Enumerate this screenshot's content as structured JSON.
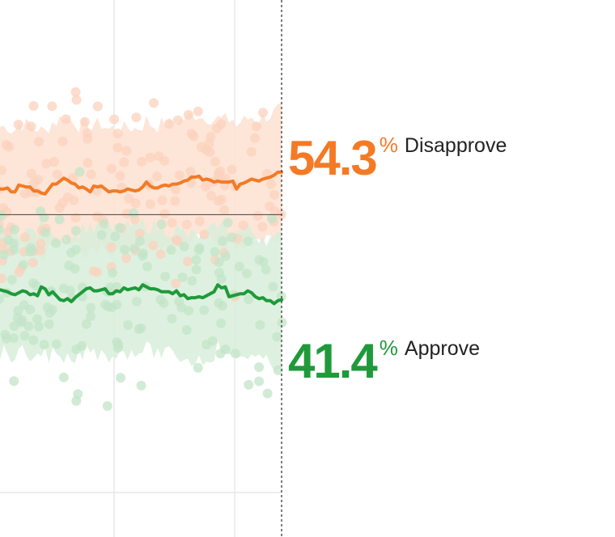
{
  "colors": {
    "disapprove": "#f47a25",
    "disapprove_band": "#fde0d0",
    "disapprove_dot": "#fbd2bd",
    "approve": "#1e9a3a",
    "approve_band": "#d8eedb",
    "approve_dot": "#c3e4c8",
    "grid": "#e9e9e9",
    "fifty_line": "#555555",
    "today_line": "#444444"
  },
  "readouts": {
    "disapprove": {
      "value": "54.3",
      "unit": "%",
      "label": "Disapprove"
    },
    "approve": {
      "value": "41.4",
      "unit": "%",
      "label": "Approve"
    }
  },
  "chart_data": {
    "type": "line",
    "ylim": [
      25,
      70
    ],
    "reference_line": 50,
    "grid": true,
    "series": [
      {
        "name": "Disapprove",
        "values": [
          52.6,
          52.6,
          52.7,
          52.3,
          52.3,
          53.0,
          52.9,
          52.8,
          52.8,
          52.4,
          52.4,
          52.2,
          52.1,
          52.6,
          53.1,
          53.1,
          53.4,
          53.7,
          53.5,
          53.2,
          53.1,
          52.7,
          52.8,
          52.6,
          52.3,
          52.9,
          52.8,
          52.9,
          52.6,
          52.3,
          52.4,
          52.4,
          52.3,
          52.4,
          52.6,
          52.5,
          52.4,
          52.5,
          52.8,
          53.3,
          52.9,
          52.7,
          52.7,
          52.9,
          53.0,
          52.9,
          53.1,
          53.1,
          53.2,
          53.4,
          53.5,
          53.8,
          53.8,
          53.9,
          53.5,
          53.6,
          53.5,
          53.3,
          53.4,
          53.3,
          53.3,
          53.3,
          53.4,
          52.6,
          53.1,
          53.2,
          53.4,
          53.6,
          53.5,
          53.4,
          53.6,
          53.7,
          53.8,
          54.0,
          54.3,
          54.3
        ]
      },
      {
        "name": "Approve",
        "values": [
          42.4,
          42.3,
          42.2,
          42.0,
          41.9,
          42.1,
          42.3,
          42.2,
          41.9,
          42.0,
          41.8,
          42.7,
          42.5,
          41.9,
          42.2,
          41.8,
          41.4,
          41.3,
          41.5,
          41.2,
          41.6,
          41.9,
          42.2,
          42.5,
          42.6,
          42.3,
          42.3,
          42.4,
          42.5,
          42.0,
          42.0,
          42.3,
          42.2,
          42.6,
          42.4,
          42.5,
          42.6,
          42.4,
          42.9,
          42.7,
          42.5,
          42.5,
          42.4,
          42.2,
          42.2,
          42.2,
          42.0,
          42.3,
          41.8,
          41.9,
          41.5,
          41.6,
          41.6,
          41.7,
          41.6,
          41.8,
          42.0,
          42.2,
          42.9,
          42.6,
          42.7,
          41.7,
          41.8,
          41.9,
          42.0,
          42.0,
          42.3,
          42.1,
          41.7,
          41.5,
          41.6,
          41.3,
          41.3,
          41.0,
          41.3,
          41.4
        ]
      }
    ]
  }
}
